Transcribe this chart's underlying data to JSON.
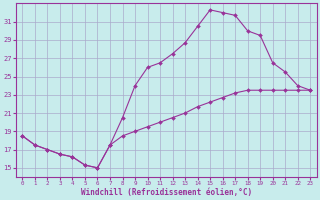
{
  "xlabel": "Windchill (Refroidissement éolien,°C)",
  "ylabel": "",
  "background_color": "#c8ecec",
  "line_color": "#993399",
  "grid_color": "#aaaacc",
  "x_ticks": [
    0,
    1,
    2,
    3,
    4,
    5,
    6,
    7,
    8,
    9,
    10,
    11,
    12,
    13,
    14,
    15,
    16,
    17,
    18,
    19,
    20,
    21,
    22,
    23
  ],
  "y_ticks": [
    15,
    17,
    19,
    21,
    23,
    25,
    27,
    29,
    31
  ],
  "xlim": [
    -0.5,
    23.5
  ],
  "ylim": [
    14.0,
    33.0
  ],
  "line1_x": [
    0,
    1,
    2,
    3,
    4,
    5,
    6,
    7,
    8,
    9,
    10,
    11,
    12,
    13,
    14,
    15,
    16,
    17,
    18,
    19,
    20,
    21,
    22,
    23
  ],
  "line1_y": [
    18.5,
    17.5,
    17.0,
    16.5,
    16.2,
    15.3,
    15.0,
    17.5,
    20.5,
    24.0,
    26.0,
    26.5,
    27.5,
    28.7,
    30.5,
    32.3,
    32.0,
    31.7,
    30.0,
    29.5,
    26.5,
    25.5,
    24.0,
    23.5
  ],
  "line2_x": [
    0,
    1,
    2,
    3,
    4,
    5,
    6,
    7,
    8,
    9,
    10,
    11,
    12,
    13,
    14,
    15,
    16,
    17,
    18,
    19,
    20,
    21,
    22,
    23
  ],
  "line2_y": [
    18.5,
    17.5,
    17.0,
    16.5,
    16.2,
    15.3,
    15.0,
    17.5,
    18.5,
    19.0,
    19.5,
    20.0,
    20.5,
    21.0,
    21.7,
    22.2,
    22.7,
    23.2,
    23.5,
    23.5,
    23.5,
    23.5,
    23.5,
    23.5
  ]
}
